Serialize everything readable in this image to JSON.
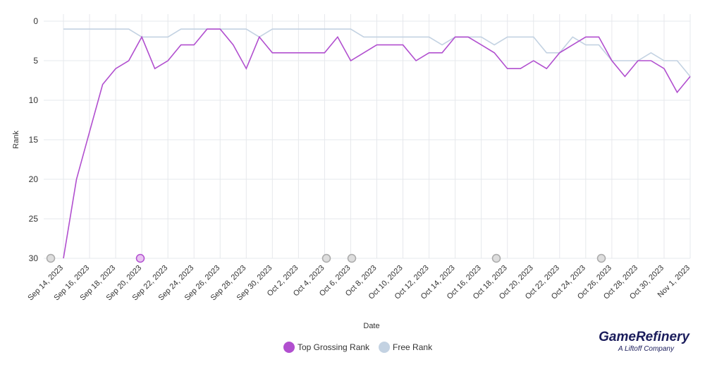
{
  "chart_data": {
    "type": "line",
    "x_label": "Date",
    "y_label": "Rank",
    "categories": [
      "Sep 14, 2023",
      null,
      "Sep 16, 2023",
      null,
      "Sep 18, 2023",
      null,
      "Sep 20, 2023",
      null,
      "Sep 22, 2023",
      null,
      "Sep 24, 2023",
      null,
      "Sep 26, 2023",
      null,
      "Sep 28, 2023",
      null,
      "Sep 30, 2023",
      null,
      "Oct 2, 2023",
      null,
      "Oct 4, 2023",
      null,
      "Oct 6, 2023",
      null,
      "Oct 8, 2023",
      null,
      "Oct 10, 2023",
      null,
      "Oct 12, 2023",
      null,
      "Oct 14, 2023",
      null,
      "Oct 16, 2023",
      null,
      "Oct 18, 2023",
      null,
      "Oct 20, 2023",
      null,
      "Oct 22, 2023",
      null,
      "Oct 24, 2023",
      null,
      "Oct 26, 2023",
      null,
      "Oct 28, 2023",
      null,
      "Oct 30, 2023",
      null,
      "Nov 1, 2023"
    ],
    "series": [
      {
        "name": "Top Grossing Rank",
        "color": "#b14fcf",
        "values": [
          30,
          20,
          14,
          8,
          6,
          5,
          2,
          6,
          5,
          3,
          3,
          1,
          1,
          3,
          6,
          2,
          4,
          4,
          4,
          4,
          4,
          2,
          5,
          4,
          3,
          3,
          3,
          5,
          4,
          4,
          2,
          2,
          3,
          4,
          6,
          6,
          5,
          6,
          4,
          3,
          2,
          2,
          5,
          7,
          5,
          5,
          6,
          9,
          7
        ]
      },
      {
        "name": "Free Rank",
        "color": "#c3d2e2",
        "values": [
          1,
          1,
          1,
          1,
          1,
          1,
          2,
          2,
          2,
          1,
          1,
          1,
          1,
          1,
          1,
          2,
          1,
          1,
          1,
          1,
          1,
          1,
          1,
          2,
          2,
          2,
          2,
          2,
          2,
          3,
          2,
          2,
          2,
          3,
          2,
          2,
          2,
          4,
          4,
          2,
          3,
          3,
          5,
          5,
          5,
          4,
          5,
          5,
          7
        ]
      }
    ],
    "ylim": [
      0,
      30
    ],
    "y_inverted": true,
    "yticks": [
      0,
      5,
      10,
      15,
      20,
      25,
      30
    ],
    "grid": true,
    "brand": {
      "name": "GameRefinery",
      "tagline": "A Liftoff Company"
    }
  }
}
